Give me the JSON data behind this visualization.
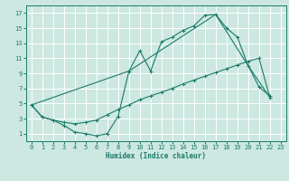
{
  "xlabel": "Humidex (Indice chaleur)",
  "bg_color": "#cce8e0",
  "grid_color": "#ffffff",
  "line_color": "#1a7a6a",
  "xlim": [
    -0.5,
    23.5
  ],
  "ylim": [
    0,
    18
  ],
  "xticks": [
    0,
    1,
    2,
    3,
    4,
    5,
    6,
    7,
    8,
    9,
    10,
    11,
    12,
    13,
    14,
    15,
    16,
    17,
    18,
    19,
    20,
    21,
    22,
    23
  ],
  "yticks": [
    1,
    3,
    5,
    7,
    9,
    11,
    13,
    15,
    17
  ],
  "line1_x": [
    0,
    1,
    2,
    3,
    4,
    5,
    6,
    7,
    8,
    9,
    10,
    11,
    12,
    13,
    14,
    15,
    16,
    17,
    18,
    19,
    20,
    21,
    22
  ],
  "line1_y": [
    4.8,
    3.2,
    2.8,
    2.1,
    1.2,
    1.0,
    0.7,
    1.0,
    3.3,
    9.3,
    12.0,
    9.3,
    13.2,
    13.8,
    14.7,
    15.3,
    16.7,
    16.8,
    15.0,
    13.8,
    10.0,
    7.2,
    6.0
  ],
  "line2_x": [
    0,
    1,
    2,
    3,
    4,
    5,
    6,
    7,
    8,
    9,
    10,
    11,
    12,
    13,
    14,
    15,
    16,
    17,
    18,
    19,
    20,
    21,
    22
  ],
  "line2_y": [
    4.8,
    3.2,
    2.8,
    2.5,
    2.3,
    2.5,
    2.8,
    3.5,
    4.2,
    4.8,
    5.5,
    6.0,
    6.5,
    7.0,
    7.6,
    8.1,
    8.6,
    9.1,
    9.6,
    10.1,
    10.6,
    11.0,
    5.8
  ],
  "line3_x": [
    0,
    9,
    17,
    20,
    22
  ],
  "line3_y": [
    4.8,
    9.3,
    16.8,
    10.0,
    5.8
  ]
}
